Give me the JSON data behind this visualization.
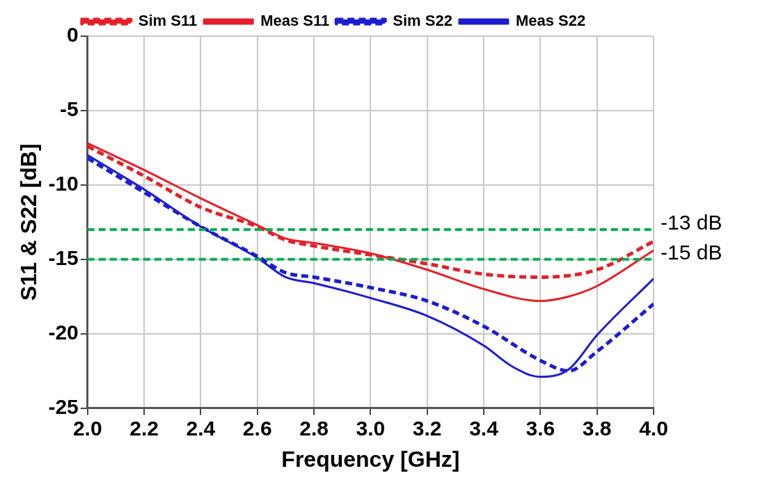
{
  "chart_data": {
    "type": "line",
    "xlabel": "Frequency [GHz]",
    "ylabel": "S11 & S22 [dB]",
    "xlim": [
      2.0,
      4.0
    ],
    "ylim": [
      -25,
      0
    ],
    "xticks": [
      {
        "value": 2.0,
        "label": "2.0"
      },
      2.2,
      2.4,
      2.6,
      2.8,
      {
        "value": 3.0,
        "label": "3.0"
      },
      3.2,
      3.4,
      3.6,
      3.8,
      {
        "value": 4.0,
        "label": "4.0"
      }
    ],
    "yticks": [
      -25,
      -20,
      -15,
      -10,
      -5,
      0
    ],
    "grid": true,
    "legend": "top",
    "series": [
      {
        "name": "Sim S11",
        "color": "#e3202a",
        "line_style": "dashed",
        "x": [
          2.0,
          2.2,
          2.4,
          2.6,
          2.7,
          2.8,
          3.0,
          3.2,
          3.4,
          3.6,
          3.8,
          4.0
        ],
        "values": [
          -7.4,
          -9.4,
          -11.5,
          -12.8,
          -13.7,
          -14.1,
          -14.7,
          -15.3,
          -16.0,
          -16.2,
          -15.7,
          -13.8
        ]
      },
      {
        "name": "Meas S11",
        "color": "#e3202a",
        "line_style": "solid",
        "x": [
          2.0,
          2.2,
          2.4,
          2.6,
          2.7,
          2.8,
          3.0,
          3.2,
          3.4,
          3.6,
          3.7,
          3.8,
          4.0
        ],
        "values": [
          -7.2,
          -9.0,
          -10.9,
          -12.7,
          -13.6,
          -13.9,
          -14.6,
          -15.7,
          -17.0,
          -17.8,
          -17.5,
          -16.8,
          -14.4
        ]
      },
      {
        "name": "Sim S22",
        "color": "#1c1cd0",
        "line_style": "dashed",
        "x": [
          2.0,
          2.2,
          2.4,
          2.6,
          2.7,
          2.8,
          3.0,
          3.2,
          3.4,
          3.6,
          3.7,
          3.8,
          4.0
        ],
        "values": [
          -8.2,
          -10.5,
          -12.8,
          -14.8,
          -15.9,
          -16.2,
          -16.9,
          -17.8,
          -19.5,
          -21.8,
          -22.5,
          -21.2,
          -18.0
        ]
      },
      {
        "name": "Meas S22",
        "color": "#1c1cd0",
        "line_style": "solid",
        "x": [
          2.0,
          2.2,
          2.4,
          2.6,
          2.7,
          2.8,
          3.0,
          3.2,
          3.4,
          3.5,
          3.6,
          3.7,
          3.8,
          4.0
        ],
        "values": [
          -8.0,
          -10.3,
          -12.8,
          -14.9,
          -16.2,
          -16.6,
          -17.6,
          -18.8,
          -20.8,
          -22.2,
          -22.9,
          -22.4,
          -20.1,
          -16.3
        ]
      }
    ],
    "ref_lines": [
      {
        "axis": "y",
        "value": -13,
        "label": "-13 dB",
        "color": "#00b04f",
        "line_style": "dashed"
      },
      {
        "axis": "y",
        "value": -15,
        "label": "-15 dB",
        "color": "#00b04f",
        "line_style": "dashed"
      }
    ]
  }
}
